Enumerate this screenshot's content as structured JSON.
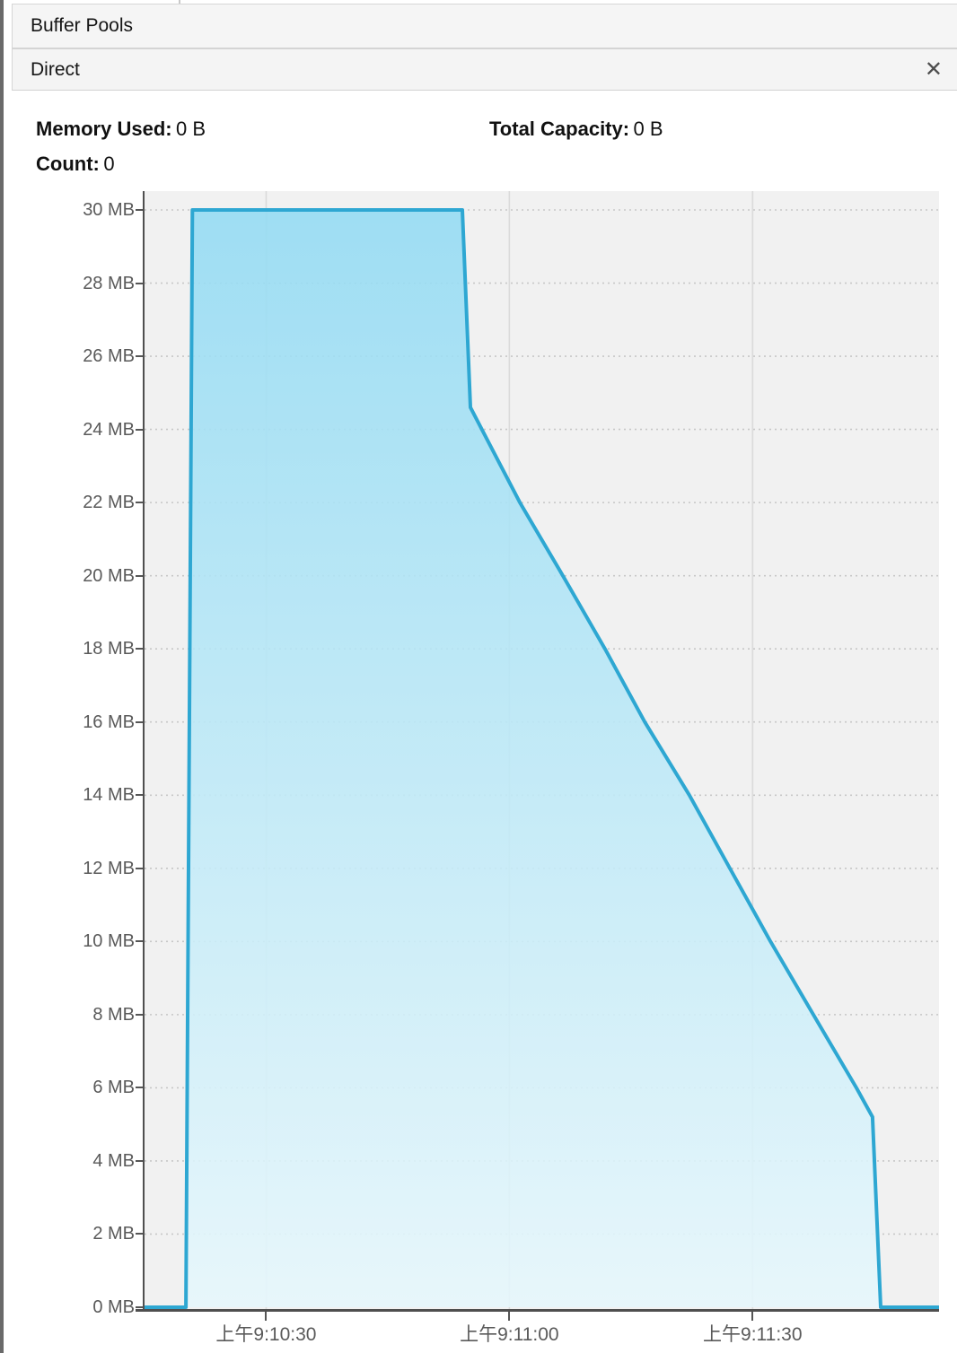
{
  "window": {
    "title": "Buffer Pools"
  },
  "panel": {
    "title": "Direct",
    "close_icon": "✕"
  },
  "stats": {
    "memory_used_label": "Memory Used:",
    "memory_used_value": "0 B",
    "total_capacity_label": "Total Capacity:",
    "total_capacity_value": "0 B",
    "count_label": "Count:",
    "count_value": "0"
  },
  "chart_data": {
    "type": "area",
    "title": "",
    "xlabel": "",
    "ylabel": "",
    "x_axis_type": "time",
    "x_domain_seconds_after_9_10": [
      15,
      113
    ],
    "ylim_mb": [
      0,
      30.5
    ],
    "grid": "on",
    "legend": "none",
    "points_t_seconds_mb": [
      [
        15,
        0
      ],
      [
        20.1,
        0
      ],
      [
        20.9,
        30
      ],
      [
        54.2,
        30
      ],
      [
        55.2,
        24.6
      ],
      [
        61.3,
        22
      ],
      [
        66.6,
        20
      ],
      [
        71.8,
        18
      ],
      [
        76.7,
        16
      ],
      [
        82.2,
        14
      ],
      [
        87.2,
        12
      ],
      [
        92.2,
        10
      ],
      [
        97.5,
        8
      ],
      [
        102.8,
        6
      ],
      [
        104.8,
        5.2
      ],
      [
        105.8,
        0
      ],
      [
        113,
        0
      ]
    ],
    "x_ticks": [
      {
        "t": 30,
        "label": "上午9:10:30"
      },
      {
        "t": 60,
        "label": "上午9:11:00"
      },
      {
        "t": 90,
        "label": "上午9:11:30"
      }
    ],
    "y_ticks": [
      {
        "mb": 0,
        "label": "0 MB"
      },
      {
        "mb": 2,
        "label": "2 MB"
      },
      {
        "mb": 4,
        "label": "4 MB"
      },
      {
        "mb": 6,
        "label": "6 MB"
      },
      {
        "mb": 8,
        "label": "8 MB"
      },
      {
        "mb": 10,
        "label": "10 MB"
      },
      {
        "mb": 12,
        "label": "12 MB"
      },
      {
        "mb": 14,
        "label": "14 MB"
      },
      {
        "mb": 16,
        "label": "16 MB"
      },
      {
        "mb": 18,
        "label": "18 MB"
      },
      {
        "mb": 20,
        "label": "20 MB"
      },
      {
        "mb": 22,
        "label": "22 MB"
      },
      {
        "mb": 24,
        "label": "24 MB"
      },
      {
        "mb": 26,
        "label": "26 MB"
      },
      {
        "mb": 28,
        "label": "28 MB"
      },
      {
        "mb": 30,
        "label": "30 MB"
      }
    ],
    "colors": {
      "line": "#2ea7d2",
      "fill_top": "#93dbf3",
      "fill_bottom": "#e6f7fc",
      "plot_bg": "#f1f1f1",
      "grid_horizontal": "#c7c7c7",
      "grid_vertical": "#dadada",
      "axis": "#4f4f4f",
      "tick_label": "#5a5a5a"
    }
  }
}
